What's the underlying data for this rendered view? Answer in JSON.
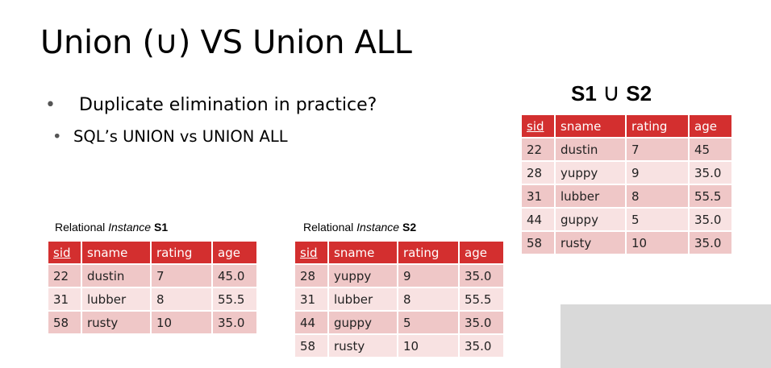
{
  "slide": {
    "title_prefix": "Union (",
    "title_symbol": "∪",
    "title_suffix": ") VS Union ALL",
    "bullets": {
      "b1_dot": "•",
      "b1": "Duplicate elimination in practice?",
      "b2_dot": "•",
      "b2": "SQL’s UNION vs UNION ALL"
    }
  },
  "s1": {
    "caption_prefix": "Relational ",
    "caption_italic": "Instance",
    "caption_name": "S1",
    "headers": [
      "sid",
      "sname",
      "rating",
      "age"
    ],
    "rows": [
      [
        "22",
        "dustin",
        "7",
        "45.0"
      ],
      [
        "31",
        "lubber",
        "8",
        "55.5"
      ],
      [
        "58",
        "rusty",
        "10",
        "35.0"
      ]
    ]
  },
  "s2": {
    "caption_prefix": "Relational ",
    "caption_italic": "Instance",
    "caption_name": "S2",
    "headers": [
      "sid",
      "sname",
      "rating",
      "age"
    ],
    "rows": [
      [
        "28",
        "yuppy",
        "9",
        "35.0"
      ],
      [
        "31",
        "lubber",
        "8",
        "55.5"
      ],
      [
        "44",
        "guppy",
        "5",
        "35.0"
      ],
      [
        "58",
        "rusty",
        "10",
        "35.0"
      ]
    ]
  },
  "union": {
    "left": "S1",
    "symbol": "∪",
    "right": "S2",
    "headers": [
      "sid",
      "sname",
      "rating",
      "age"
    ],
    "rows": [
      [
        "22",
        "dustin",
        "7",
        "45"
      ],
      [
        "28",
        "yuppy",
        "9",
        "35.0"
      ],
      [
        "31",
        "lubber",
        "8",
        "55.5"
      ],
      [
        "44",
        "guppy",
        "5",
        "35.0"
      ],
      [
        "58",
        "rusty",
        "10",
        "35.0"
      ]
    ]
  },
  "colors": {
    "header_red": "#d32f2f",
    "row_dark": "#efc7c7",
    "row_light": "#f8e2e2",
    "gray_box": "#d9d9d9"
  }
}
